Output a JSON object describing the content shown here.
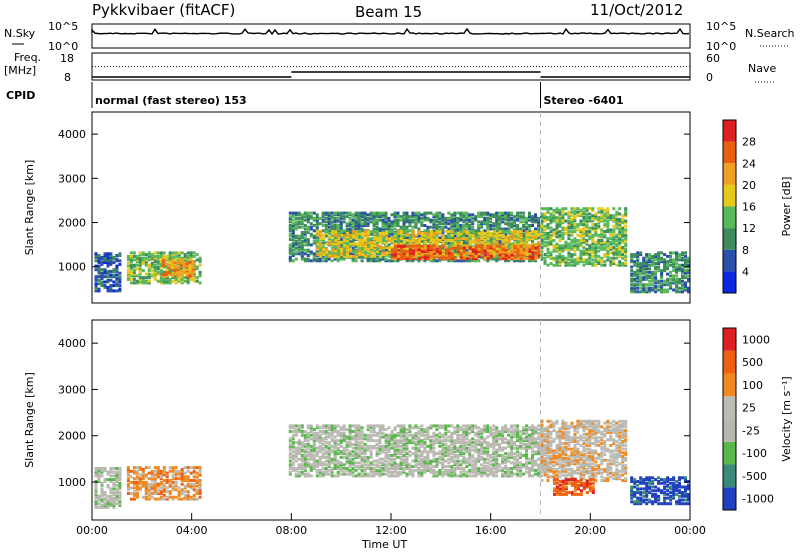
{
  "header": {
    "station": "Pykkvibaer (fitACF)",
    "beam": "Beam 15",
    "date": "11/Oct/2012"
  },
  "status_panels": {
    "nsky_label": "N.Sky",
    "nsearch_label": "N.Search",
    "freq_label": "Freq.",
    "freq_unit": "[MHz]",
    "nave_label": "Nave",
    "cpid_label": "CPID",
    "noise_ticks_left": [
      "10^5",
      "10^0"
    ],
    "noise_ticks_right": [
      "10^5",
      "10^0"
    ],
    "freq_ticks_left": [
      "18",
      "8"
    ],
    "nave_ticks_right": [
      "60",
      "0"
    ],
    "cpid_segments": [
      {
        "label": "normal (fast stereo) 153",
        "start_hour": 0,
        "end_hour": 18
      },
      {
        "label": "Stereo -6401",
        "start_hour": 18,
        "end_hour": 24
      }
    ],
    "freq_series": [
      {
        "start_hour": 0,
        "end_hour": 8,
        "value_mhz": 9.5
      },
      {
        "start_hour": 8,
        "end_hour": 18,
        "value_mhz": 12
      },
      {
        "start_hour": 18,
        "end_hour": 24,
        "value_mhz": 9.5
      }
    ],
    "nave_level": 40
  },
  "chart_data": [
    {
      "type": "heatmap",
      "name": "power",
      "ylabel": "Slant Range [km]",
      "ylim": [
        180,
        4500
      ],
      "yticks": [
        "1000",
        "2000",
        "3000",
        "4000"
      ],
      "colorbar_label": "Power [dB]",
      "colorbar_ticks": [
        "4",
        "8",
        "12",
        "16",
        "20",
        "24",
        "28"
      ],
      "colors": [
        "#0a28e0",
        "#2a4fa8",
        "#3c8c5c",
        "#58b85a",
        "#e8c818",
        "#f0a020",
        "#e86010",
        "#e02020"
      ],
      "regions": [
        {
          "t0": 0.1,
          "t1": 1.1,
          "r0": 420,
          "r1": 1300,
          "level": 1
        },
        {
          "t0": 1.4,
          "t1": 4.3,
          "r0": 600,
          "r1": 1300,
          "level": 3
        },
        {
          "t0": 2.8,
          "t1": 4.1,
          "r0": 750,
          "r1": 1150,
          "level": 5
        },
        {
          "t0": 7.9,
          "t1": 18.0,
          "r0": 1100,
          "r1": 2200,
          "level": 2
        },
        {
          "t0": 9.0,
          "t1": 17.9,
          "r0": 1200,
          "r1": 1800,
          "level": 4
        },
        {
          "t0": 12.0,
          "t1": 17.9,
          "r0": 1150,
          "r1": 1450,
          "level": 6
        },
        {
          "t0": 18.0,
          "t1": 21.4,
          "r0": 1000,
          "r1": 2300,
          "level": 3
        },
        {
          "t0": 21.6,
          "t1": 24.0,
          "r0": 400,
          "r1": 1300,
          "level": 2
        }
      ]
    },
    {
      "type": "heatmap",
      "name": "velocity",
      "ylabel": "Slant Range [km]",
      "ylim": [
        180,
        4500
      ],
      "yticks": [
        "1000",
        "2000",
        "3000",
        "4000"
      ],
      "colorbar_label": "Velocity [m s⁻¹]",
      "colorbar_ticks": [
        "1000",
        "500",
        "100",
        "25",
        "-25",
        "-100",
        "-500",
        "-1000"
      ],
      "colors": [
        "#2040c0",
        "#3a8a7a",
        "#58b84a",
        "#b8b8b0",
        "#bcbcb4",
        "#f08a20",
        "#f06010",
        "#e02020"
      ],
      "regions": [
        {
          "t0": 0.1,
          "t1": 1.1,
          "r0": 420,
          "r1": 1300,
          "level": 3
        },
        {
          "t0": 1.4,
          "t1": 4.3,
          "r0": 600,
          "r1": 1300,
          "level": 5
        },
        {
          "t0": 7.9,
          "t1": 18.0,
          "r0": 1100,
          "r1": 2200,
          "level": 3
        },
        {
          "t0": 18.0,
          "t1": 21.4,
          "r0": 1000,
          "r1": 2300,
          "level": 4
        },
        {
          "t0": 18.5,
          "t1": 20.1,
          "r0": 700,
          "r1": 1050,
          "level": 6
        },
        {
          "t0": 21.6,
          "t1": 24.0,
          "r0": 500,
          "r1": 1100,
          "level": 0
        }
      ]
    }
  ],
  "xaxis": {
    "label": "Time UT",
    "xlim": [
      0,
      24
    ],
    "ticks": [
      "00:00",
      "04:00",
      "08:00",
      "12:00",
      "16:00",
      "20:00",
      "00:00"
    ]
  }
}
